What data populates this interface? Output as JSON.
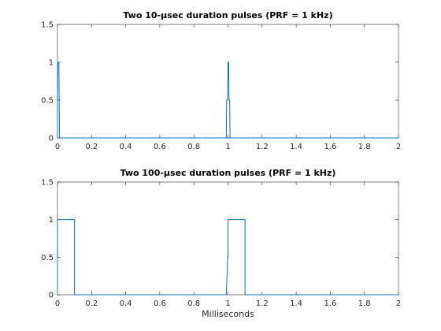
{
  "chart_data": [
    {
      "type": "line",
      "title": "Two 10-μsec duration pulses (PRF = 1 kHz)",
      "xlabel": "",
      "ylabel": "",
      "xlim": [
        0,
        2
      ],
      "ylim": [
        0,
        1.5
      ],
      "xticks": [
        0,
        0.2,
        0.4,
        0.6,
        0.8,
        1,
        1.2,
        1.4,
        1.6,
        1.8,
        2
      ],
      "xticklabels": [
        "0",
        "0.2",
        "0.4",
        "0.6",
        "0.8",
        "1",
        "1.2",
        "1.4",
        "1.6",
        "1.8",
        "2"
      ],
      "yticks": [
        0,
        0.5,
        1,
        1.5
      ],
      "yticklabels": [
        "0",
        "0.5",
        "1",
        "1.5"
      ],
      "grid": false,
      "color": "#0072BD",
      "x": [
        0,
        0,
        0.002,
        0.004,
        0.006,
        0.008,
        0.01,
        0.012,
        0.014,
        0.016,
        2
      ],
      "y": [
        0,
        0.5,
        1,
        1,
        1,
        1,
        0.5,
        0,
        0,
        0,
        0
      ],
      "x2": [
        0.988,
        0.99,
        0.992,
        0.994,
        0.996,
        0.998,
        1.0,
        1.002,
        1.004,
        1.006,
        1.008,
        1.01,
        1.012,
        1.014
      ],
      "y2": [
        0,
        0,
        0.5,
        0.5,
        0.5,
        0.5,
        1,
        1,
        1,
        0.5,
        0.5,
        0.5,
        0,
        0
      ]
    },
    {
      "type": "line",
      "title": "Two 100-μsec duration pulses (PRF = 1 kHz)",
      "xlabel": "Milliseconds",
      "ylabel": "",
      "xlim": [
        0,
        2
      ],
      "ylim": [
        0,
        1.5
      ],
      "xticks": [
        0,
        0.2,
        0.4,
        0.6,
        0.8,
        1,
        1.2,
        1.4,
        1.6,
        1.8,
        2
      ],
      "xticklabels": [
        "0",
        "0.2",
        "0.4",
        "0.6",
        "0.8",
        "1",
        "1.2",
        "1.4",
        "1.6",
        "1.8",
        "2"
      ],
      "yticks": [
        0,
        0.5,
        1,
        1.5
      ],
      "yticklabels": [
        "0",
        "0.5",
        "1",
        "1.5"
      ],
      "grid": false,
      "color": "#0072BD",
      "x": [
        0,
        0,
        0.098,
        0.1,
        0.1,
        0.99,
        0.998,
        1.0,
        1.0,
        1.098,
        1.1,
        1.1,
        2
      ],
      "y": [
        0,
        1,
        1,
        1,
        0,
        0,
        0.5,
        0.5,
        1,
        1,
        1,
        0,
        0
      ]
    }
  ]
}
